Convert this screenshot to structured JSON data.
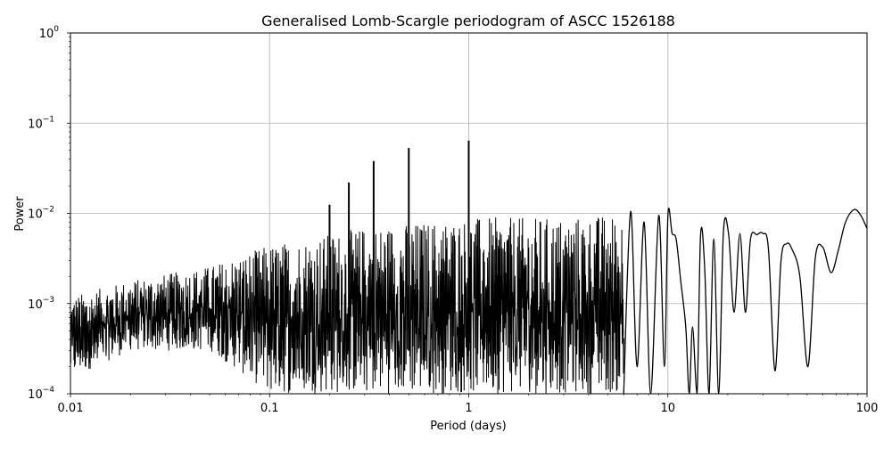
{
  "chart_data": {
    "type": "line",
    "title": "Generalised Lomb-Scargle periodogram of ASCC 1526188",
    "xlabel": "Period (days)",
    "ylabel": "Power",
    "xscale": "log",
    "yscale": "log",
    "xlim": [
      0.01,
      100
    ],
    "ylim": [
      0.0001,
      1
    ],
    "grid": true,
    "legend": null,
    "x_ticks": [
      {
        "value": 0.01,
        "label": "0.01"
      },
      {
        "value": 0.1,
        "label": "0.1"
      },
      {
        "value": 1,
        "label": "1"
      },
      {
        "value": 10,
        "label": "10"
      },
      {
        "value": 100,
        "label": "100"
      }
    ],
    "y_ticks": [
      {
        "value": 1,
        "base": "10",
        "exp": "0"
      },
      {
        "value": 0.1,
        "base": "10",
        "exp": "−1"
      },
      {
        "value": 0.01,
        "base": "10",
        "exp": "−2"
      },
      {
        "value": 0.001,
        "base": "10",
        "exp": "−3"
      },
      {
        "value": 0.0001,
        "base": "10",
        "exp": "−4"
      }
    ],
    "noise_envelope": [
      {
        "period": 0.01,
        "upper": 0.0012,
        "lower": 0.00015
      },
      {
        "period": 0.02,
        "upper": 0.0018,
        "lower": 0.0003
      },
      {
        "period": 0.05,
        "upper": 0.0026,
        "lower": 0.0003
      },
      {
        "period": 0.1,
        "upper": 0.0045,
        "lower": 0.0001
      },
      {
        "period": 0.3,
        "upper": 0.007,
        "lower": 0.0001
      },
      {
        "period": 1,
        "upper": 0.009,
        "lower": 0.0001
      },
      {
        "period": 3,
        "upper": 0.009,
        "lower": 0.0001
      },
      {
        "period": 6,
        "upper": 0.01,
        "lower": 0.0001
      }
    ],
    "peaks": [
      {
        "period": 0.2,
        "power": 0.0125
      },
      {
        "period": 0.25,
        "power": 0.022
      },
      {
        "period": 0.333,
        "power": 0.038
      },
      {
        "period": 0.5,
        "power": 0.053
      },
      {
        "period": 1.0,
        "power": 0.064
      }
    ],
    "long_period_series": {
      "period": [
        6.0,
        6.5,
        7.0,
        7.6,
        8.2,
        9.0,
        9.6,
        10.0,
        10.5,
        11.0,
        11.6,
        12.3,
        12.8,
        13.3,
        14.0,
        14.6,
        15.3,
        16.1,
        17.0,
        18.0,
        19.0,
        20.2,
        21.5,
        23.0,
        24.5,
        26.0,
        28.0,
        30.0,
        32.0,
        34.5,
        37.0,
        39.5,
        42.0,
        46.0,
        50.5,
        55.0,
        60.0,
        66.0,
        72.0,
        78.0,
        86.0,
        93.0,
        100.0
      ],
      "power": [
        0.0001,
        0.0105,
        0.0002,
        0.008,
        0.0001,
        0.0095,
        0.0002,
        0.0095,
        0.006,
        0.0052,
        0.0018,
        0.00055,
        0.0001,
        0.00055,
        0.0001,
        0.0058,
        0.0025,
        0.0001,
        0.0052,
        0.0001,
        0.0062,
        0.0058,
        0.0008,
        0.006,
        0.0008,
        0.0052,
        0.0058,
        0.006,
        0.004,
        0.00018,
        0.003,
        0.0046,
        0.004,
        0.002,
        0.0002,
        0.0032,
        0.0042,
        0.0022,
        0.004,
        0.008,
        0.011,
        0.0095,
        0.0068
      ]
    }
  }
}
